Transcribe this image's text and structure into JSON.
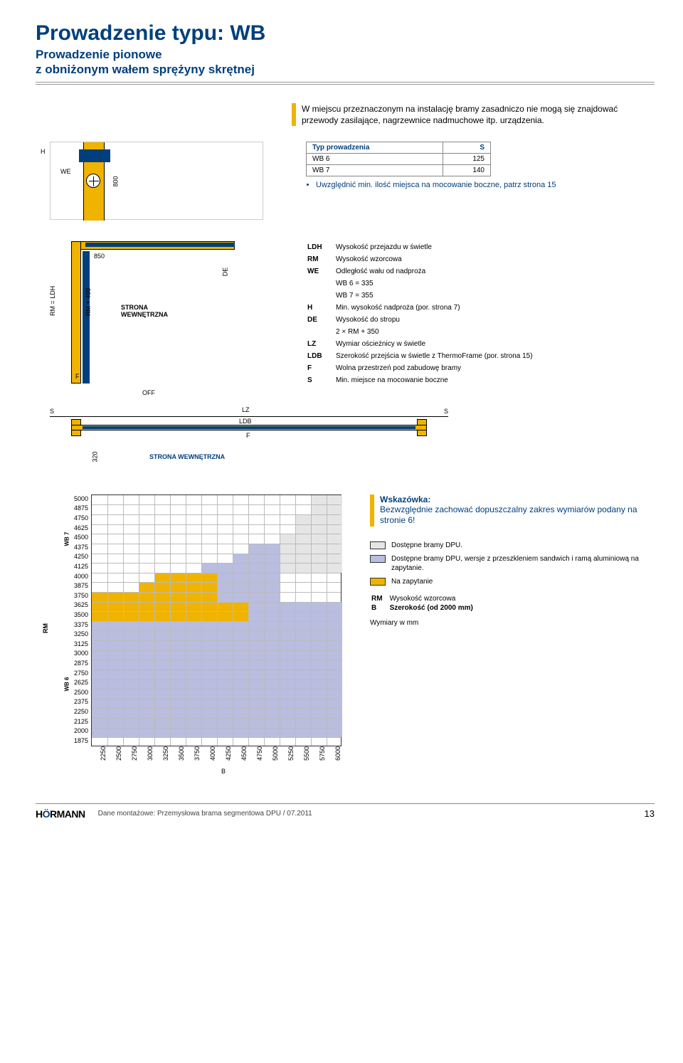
{
  "title": "Prowadzenie typu: WB",
  "subtitle_l1": "Prowadzenie pionowe",
  "subtitle_l2": "z obniżonym wałem sprężyny skrętnej",
  "intro": "W miejscu przeznaczonym na instalację bramy zasadniczo nie mogą się znajdować przewody zasilające, nagrzewnice nadmuchowe itp. urządzenia.",
  "dia1_labels": {
    "WE": "WE",
    "H": "H",
    "v800": "800"
  },
  "type_table": {
    "hd1": "Typ prowadzenia",
    "hd2": "S",
    "rows": [
      [
        "WB 6",
        "125"
      ],
      [
        "WB 7",
        "140"
      ]
    ]
  },
  "bullet": "Uwzględnić min. ilość miejsca na mocowanie boczne, patrz strona 15",
  "dia2_labels": {
    "v850": "850",
    "rm400": "RM + 400",
    "F": "F",
    "LDH": "RM = LDH",
    "DE": "DE",
    "SW": "STRONA\nWEWNĘTRZNA",
    "OFF": "OFF"
  },
  "defs": [
    [
      "LDH",
      "Wysokość przejazdu w świetle"
    ],
    [
      "RM",
      "Wysokość wzorcowa"
    ],
    [
      "WE",
      "Odległość wału od nadproża"
    ],
    [
      "",
      "WB 6 = 335"
    ],
    [
      "",
      "WB 7 = 355"
    ],
    [
      "H",
      "Min. wysokość nadproża (por. strona 7)"
    ],
    [
      "DE",
      "Wysokość do stropu"
    ],
    [
      "",
      "2 × RM + 350"
    ],
    [
      "LZ",
      "Wymiar ościeżnicy w świetle"
    ],
    [
      "LDB",
      "Szerokość przejścia w świetle z ThermoFrame (por. strona 15)"
    ],
    [
      "F",
      "Wolna przestrzeń pod zabudowę bramy"
    ],
    [
      "S",
      "Min. miejsce na mocowanie boczne"
    ]
  ],
  "dia3_labels": {
    "S": "S",
    "LZ": "LZ",
    "LDB": "LDB",
    "F": "F",
    "v320": "320",
    "SW": "STRONA WEWNĘTRZNA"
  },
  "grid": {
    "rm_label": "RM",
    "wb7": "WB 7",
    "wb6": "WB 6",
    "yvals": [
      "5000",
      "4875",
      "4750",
      "4625",
      "4500",
      "4375",
      "4250",
      "4125",
      "4000",
      "3875",
      "3750",
      "3625",
      "3500",
      "3375",
      "3250",
      "3125",
      "3000",
      "2875",
      "2750",
      "2625",
      "2500",
      "2375",
      "2250",
      "2125",
      "2000",
      "1875"
    ],
    "xvals": [
      "2250",
      "2500",
      "2750",
      "3000",
      "3250",
      "3500",
      "3750",
      "4000",
      "4250",
      "4500",
      "4750",
      "5000",
      "5250",
      "5500",
      "5750",
      "6000"
    ],
    "xlabel": "B",
    "colors": {
      "dark": "#e5e5e5",
      "med": "#b9bde0",
      "yellow": "#efb300",
      "grid": "#bbbbbb",
      "border": "#333333"
    },
    "fills_dark": [
      [
        0,
        14,
        16
      ],
      [
        1,
        14,
        16
      ],
      [
        2,
        13,
        16
      ],
      [
        3,
        13,
        16
      ],
      [
        4,
        12,
        16
      ],
      [
        5,
        10,
        16
      ],
      [
        6,
        9,
        16
      ],
      [
        7,
        7,
        16
      ]
    ],
    "fills_med": [
      [
        5,
        10,
        12
      ],
      [
        6,
        9,
        12
      ],
      [
        7,
        7,
        12
      ],
      [
        8,
        4,
        12
      ],
      [
        9,
        3,
        12
      ],
      [
        10,
        0,
        12
      ],
      [
        11,
        0,
        16
      ],
      [
        12,
        0,
        16
      ],
      [
        13,
        0,
        16
      ],
      [
        14,
        0,
        16
      ],
      [
        15,
        0,
        16
      ],
      [
        16,
        0,
        16
      ],
      [
        17,
        0,
        16
      ],
      [
        18,
        0,
        16
      ],
      [
        19,
        0,
        16
      ],
      [
        20,
        0,
        16
      ],
      [
        21,
        0,
        16
      ],
      [
        22,
        0,
        16
      ],
      [
        23,
        0,
        16
      ],
      [
        24,
        0,
        16
      ]
    ],
    "fills_yellow": [
      [
        8,
        4,
        8
      ],
      [
        9,
        3,
        8
      ],
      [
        10,
        0,
        8
      ],
      [
        11,
        0,
        10
      ],
      [
        12,
        0,
        10
      ]
    ]
  },
  "hint": {
    "t": "Wskazówka:",
    "d": "Bezwzględnie zachować dopuszczalny zakres wymiarów podany na stronie 6!"
  },
  "legend": [
    {
      "color": "#e5e5e5",
      "txt": "Dostępne bramy DPU."
    },
    {
      "color": "#b9bde0",
      "txt": "Dostępne bramy DPU, wersje z przeszkleniem sandwich i ramą aluminiową na zapytanie."
    },
    {
      "color": "#efb300",
      "txt": "Na zapytanie"
    }
  ],
  "legend2": [
    [
      "RM",
      "Wysokość wzorcowa"
    ],
    [
      "B",
      "Szerokość (od 2000 mm)"
    ]
  ],
  "wym": "Wymiary w mm",
  "footer": {
    "txt": "Dane montażowe: Przemysłowa brama segmentowa DPU / 07.2011",
    "pg": "13"
  }
}
